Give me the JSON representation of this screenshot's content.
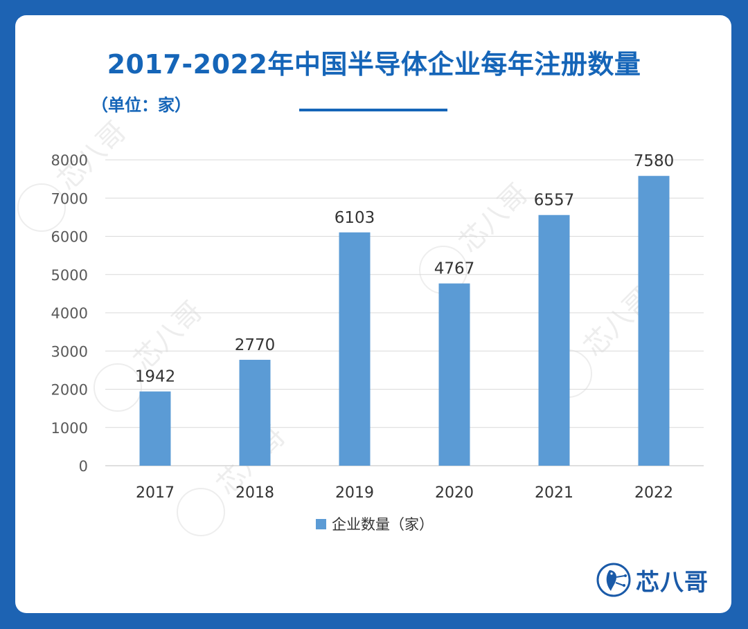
{
  "header": {
    "title": "2017-2022年中国半导体企业每年注册数量",
    "unit": "（单位：家）"
  },
  "branding": {
    "logo_text": "芯八哥",
    "logo_icon": "bird-circuit-logo-icon",
    "watermark_text": "芯八哥"
  },
  "colors": {
    "background": "#1d63b3",
    "title": "#1565b8",
    "bar": "#5b9bd5",
    "gridline": "#d9d9d9"
  },
  "chart_data": {
    "type": "bar",
    "categories": [
      "2017",
      "2018",
      "2019",
      "2020",
      "2021",
      "2022"
    ],
    "series": [
      {
        "name": "企业数量（家）",
        "values": [
          1942,
          2770,
          6103,
          4767,
          6557,
          7580
        ]
      }
    ],
    "data_labels": [
      "1942",
      "2770",
      "6103",
      "4767",
      "6557",
      "7580"
    ],
    "ylim": [
      0,
      8000
    ],
    "yticks": [
      "0",
      "1000",
      "2000",
      "3000",
      "4000",
      "5000",
      "6000",
      "7000",
      "8000"
    ],
    "grid": true,
    "legend": "bottom-center"
  }
}
